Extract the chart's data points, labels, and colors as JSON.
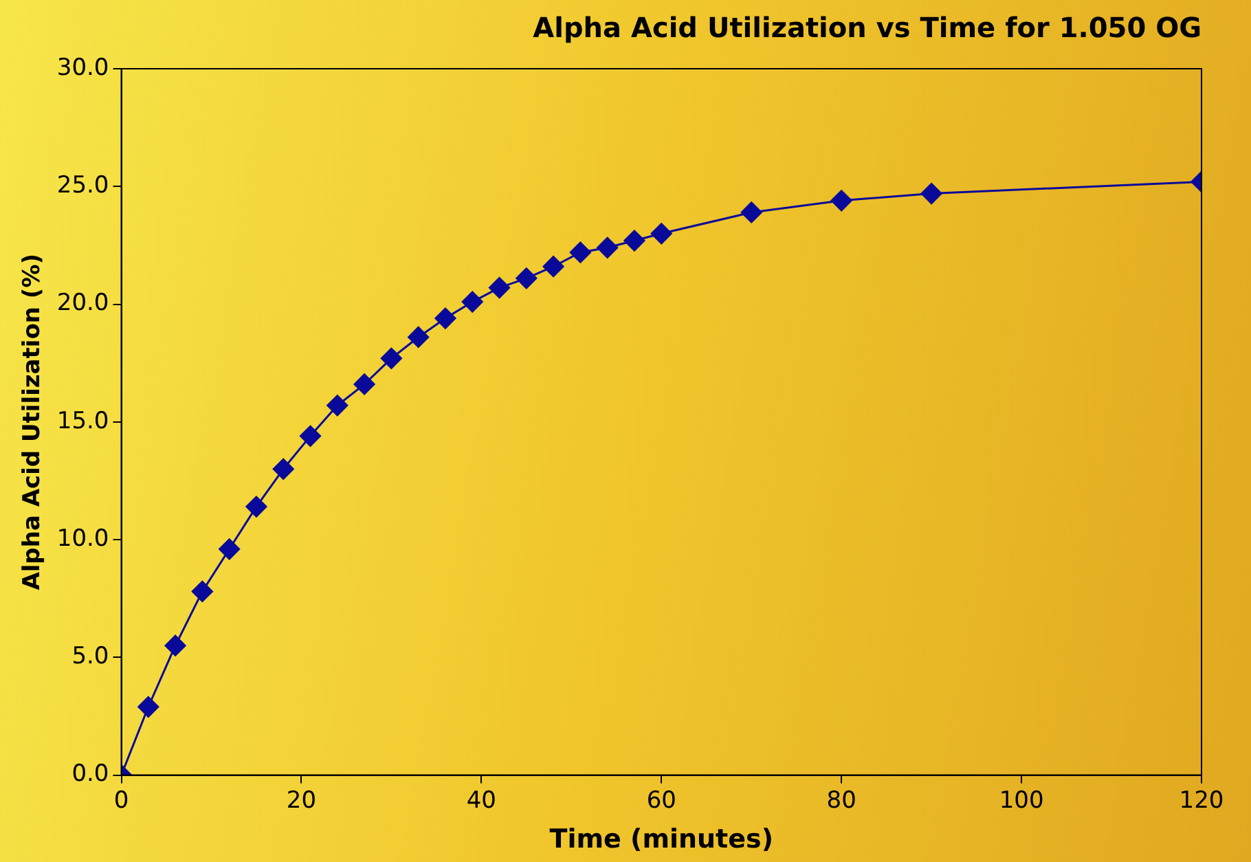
{
  "chart_data": {
    "type": "line",
    "title": "Alpha Acid Utilization vs Time for 1.050 OG",
    "xlabel": "Time (minutes)",
    "ylabel": "Alpha Acid Utilization (%)",
    "series": [
      {
        "color": "#0a0a9a",
        "x": [
          0,
          3,
          6,
          9,
          12,
          15,
          18,
          21,
          24,
          27,
          30,
          33,
          36,
          39,
          42,
          45,
          48,
          51,
          54,
          57,
          60,
          70,
          80,
          90,
          120
        ],
        "values": [
          0,
          2.9,
          5.5,
          7.8,
          9.6,
          11.4,
          13.0,
          14.4,
          15.7,
          16.6,
          17.7,
          18.6,
          19.4,
          20.1,
          20.7,
          21.1,
          21.6,
          22.2,
          22.4,
          22.7,
          23.0,
          23.9,
          24.4,
          24.7,
          25.2
        ]
      }
    ],
    "xlim": [
      0,
      120
    ],
    "xticks": [
      0,
      20,
      40,
      60,
      80,
      100,
      120
    ],
    "ylim": [
      0,
      30
    ],
    "yticks": [
      {
        "value": 0,
        "label": "0.0"
      },
      {
        "value": 5,
        "label": "5.0"
      },
      {
        "value": 10,
        "label": "10.0"
      },
      {
        "value": 15,
        "label": "15.0"
      },
      {
        "value": 20,
        "label": "20.0"
      },
      {
        "value": 25,
        "label": "25.0"
      },
      {
        "value": 30,
        "label": "30.0"
      }
    ],
    "grid": false,
    "legend": false,
    "marker": "diamond",
    "line_style": "solid"
  }
}
